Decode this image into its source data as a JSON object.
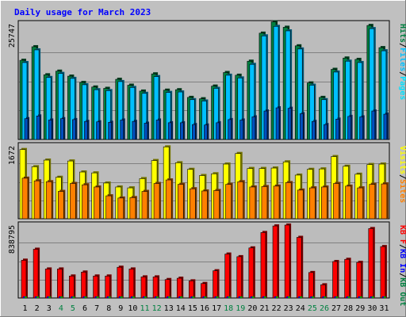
{
  "title": "Daily usage for March 2023",
  "colors": {
    "background": "#c0c0c0",
    "panel": "#bcbcbc",
    "grid": "#808080",
    "hits": "#008040",
    "files": "#00c0ff",
    "pages": "#00e0ff",
    "visits": "#ffff00",
    "sites": "#ff8000",
    "kb": "#ff0000",
    "title": "#0000ff",
    "weekend": "#008040"
  },
  "chart_data": [
    {
      "type": "bar",
      "panel": "top",
      "ymax_label": "25747",
      "ylim": [
        0,
        25747
      ],
      "categories": [
        "1",
        "2",
        "3",
        "4",
        "5",
        "6",
        "7",
        "8",
        "9",
        "10",
        "11",
        "12",
        "13",
        "14",
        "15",
        "16",
        "17",
        "18",
        "19",
        "20",
        "21",
        "22",
        "23",
        "24",
        "25",
        "26",
        "27",
        "28",
        "29",
        "30",
        "31"
      ],
      "weekend_days": [
        "4",
        "5",
        "11",
        "12",
        "18",
        "19",
        "25",
        "26"
      ],
      "side_labels": [
        {
          "text": "Hits",
          "color": "#008040"
        },
        {
          "text": "/",
          "color": "#000000"
        },
        {
          "text": "Files",
          "color": "#00c0ff"
        },
        {
          "text": "/",
          "color": "#000000"
        },
        {
          "text": "Pages",
          "color": "#00e0ff"
        }
      ],
      "series": [
        {
          "name": "Hits",
          "values": [
            17500,
            20500,
            14300,
            15100,
            14000,
            12600,
            11600,
            11300,
            13300,
            12000,
            10700,
            14500,
            10900,
            11000,
            9300,
            9000,
            11800,
            14800,
            14200,
            17300,
            23500,
            26000,
            24800,
            20700,
            12500,
            9300,
            15500,
            18000,
            17700,
            25200,
            20300
          ]
        },
        {
          "name": "Files",
          "values": [
            17000,
            19800,
            13700,
            14600,
            13500,
            12100,
            11000,
            10800,
            12800,
            11500,
            10200,
            13900,
            10400,
            10500,
            8800,
            8500,
            11300,
            14200,
            13600,
            16600,
            22900,
            25000,
            24000,
            20000,
            12000,
            8800,
            14900,
            17300,
            17000,
            24500,
            19600
          ]
        },
        {
          "name": "Pages",
          "values": [
            4600,
            5200,
            4300,
            4600,
            4400,
            4000,
            3900,
            3800,
            4300,
            4000,
            3600,
            4300,
            3700,
            3700,
            3300,
            3200,
            3700,
            4400,
            4300,
            5000,
            6300,
            7000,
            6900,
            5700,
            4000,
            3300,
            4500,
            5100,
            5000,
            6300,
            5600
          ]
        }
      ]
    },
    {
      "type": "bar",
      "panel": "middle",
      "ymax_label": "1672",
      "ylim": [
        0,
        1672
      ],
      "categories": [
        "1",
        "2",
        "3",
        "4",
        "5",
        "6",
        "7",
        "8",
        "9",
        "10",
        "11",
        "12",
        "13",
        "14",
        "15",
        "16",
        "17",
        "18",
        "19",
        "20",
        "21",
        "22",
        "23",
        "24",
        "25",
        "26",
        "27",
        "28",
        "29",
        "30",
        "31"
      ],
      "side_labels": [
        {
          "text": "Visits",
          "color": "#ffff00"
        },
        {
          "text": "/",
          "color": "#000000"
        },
        {
          "text": "Sites",
          "color": "#ff8000"
        }
      ],
      "series": [
        {
          "name": "Visits",
          "values": [
            1570,
            1180,
            1330,
            940,
            1310,
            1060,
            1040,
            810,
            720,
            700,
            910,
            1320,
            1630,
            1270,
            1120,
            980,
            1020,
            1240,
            1480,
            1140,
            1140,
            1150,
            1290,
            990,
            1120,
            1130,
            1410,
            1190,
            1010,
            1230,
            1240
          ]
        },
        {
          "name": "Sites",
          "values": [
            920,
            860,
            840,
            620,
            800,
            770,
            720,
            520,
            470,
            480,
            620,
            800,
            880,
            780,
            680,
            630,
            640,
            780,
            840,
            720,
            730,
            740,
            820,
            650,
            700,
            720,
            800,
            740,
            700,
            780,
            790
          ]
        }
      ]
    },
    {
      "type": "bar",
      "panel": "bottom",
      "ymax_label": "838795",
      "ylim": [
        0,
        838795
      ],
      "categories": [
        "1",
        "2",
        "3",
        "4",
        "5",
        "6",
        "7",
        "8",
        "9",
        "10",
        "11",
        "12",
        "13",
        "14",
        "15",
        "16",
        "17",
        "18",
        "19",
        "20",
        "21",
        "22",
        "23",
        "24",
        "25",
        "26",
        "27",
        "28",
        "29",
        "30",
        "31"
      ],
      "side_labels": [
        {
          "text": "KB F",
          "color": "#ff0000"
        },
        {
          "text": "/",
          "color": "#000000"
        },
        {
          "text": "KB In",
          "color": "#0000ff"
        },
        {
          "text": "/",
          "color": "#000000"
        },
        {
          "text": "KB Out",
          "color": "#008040"
        }
      ],
      "series": [
        {
          "name": "KB F",
          "values": [
            430000,
            555000,
            330000,
            330000,
            250000,
            295000,
            250000,
            250000,
            350000,
            330000,
            240000,
            240000,
            210000,
            225000,
            195000,
            165000,
            310000,
            500000,
            470000,
            570000,
            745000,
            820000,
            830000,
            690000,
            290000,
            150000,
            415000,
            440000,
            405000,
            790000,
            585000
          ]
        },
        {
          "name": "KB In",
          "values": [
            1000,
            1000,
            1000,
            1000,
            1000,
            1000,
            1000,
            1000,
            1000,
            1000,
            1000,
            1000,
            1000,
            1000,
            1000,
            1000,
            1000,
            1000,
            1000,
            1000,
            1000,
            1000,
            1000,
            1000,
            1000,
            1000,
            1000,
            1000,
            1000,
            1000,
            1000
          ]
        },
        {
          "name": "KB Out",
          "values": [
            1000,
            1000,
            1000,
            1000,
            1000,
            1000,
            1000,
            1000,
            1000,
            1000,
            1000,
            1000,
            1000,
            1000,
            1000,
            1000,
            1000,
            1000,
            1000,
            1000,
            1000,
            1000,
            1000,
            1000,
            1000,
            1000,
            1000,
            1000,
            1000,
            1000,
            1000
          ]
        }
      ]
    }
  ]
}
